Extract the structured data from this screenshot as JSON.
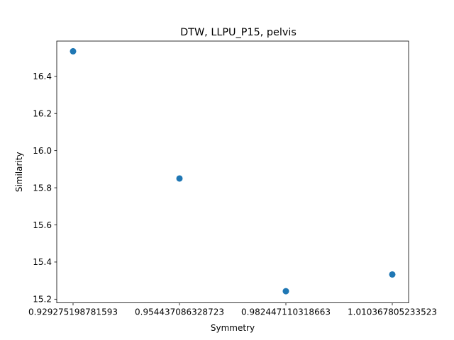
{
  "chart_data": {
    "type": "scatter",
    "title": "DTW, LLPU_P15, pelvis",
    "xlabel": "Symmetry",
    "ylabel": "Similarity",
    "x_ticks": [
      "0.929275198781593",
      "0.954437086328723",
      "0.982447110318663",
      "1.010367805233523"
    ],
    "y_ticks": [
      15.2,
      15.4,
      15.6,
      15.8,
      16.0,
      16.2,
      16.4
    ],
    "y_tick_labels": [
      "15.2",
      "15.4",
      "15.6",
      "15.8",
      "16.0",
      "16.2",
      "16.4"
    ],
    "points": [
      {
        "x": "0.929275198781593",
        "y": 16.535
      },
      {
        "x": "0.954437086328723",
        "y": 15.85
      },
      {
        "x": "0.982447110318663",
        "y": 15.243
      },
      {
        "x": "1.010367805233523",
        "y": 15.333
      }
    ],
    "ylim": [
      15.18,
      16.59
    ],
    "grid": false,
    "legend": "none",
    "marker_color": "#1f77b4"
  }
}
